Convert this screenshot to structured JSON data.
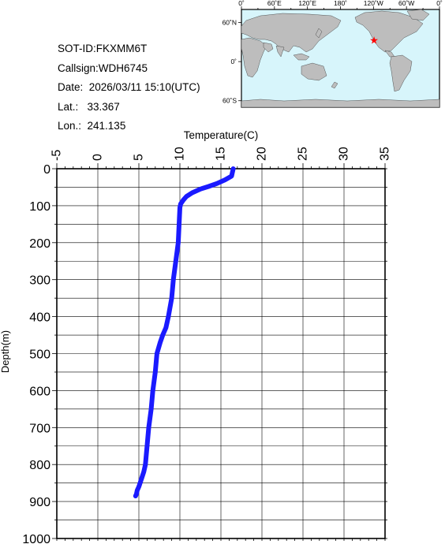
{
  "info": {
    "sot_id": "SOT-ID:FKXMM6T",
    "callsign": "Callsign:WDH6745",
    "date": "Date:  2026/03/11 15:10(UTC)",
    "lat": "Lat.:   33.367",
    "lon": "Lon.:  241.135"
  },
  "map": {
    "lon_labels": [
      "0˚",
      "60˚E",
      "120˚E",
      "180˚",
      "120˚W",
      "60˚W",
      "0˚"
    ],
    "lat_labels": [
      "60˚N",
      "0˚",
      "60˚S"
    ],
    "marker": {
      "lat": 33.367,
      "lon": 241.135
    },
    "colors": {
      "ocean": "#d7f5fb",
      "land": "#bdbdbd",
      "marker": "#ff0000"
    }
  },
  "chart_data": {
    "type": "line",
    "xlabel": "Temperature(C)",
    "ylabel": "Depth(m)",
    "xlim": [
      -5,
      35
    ],
    "ylim": [
      0,
      1000
    ],
    "y_inverted": true,
    "x_axis_position": "top",
    "x_ticks": [
      "-5",
      "0",
      "5",
      "10",
      "15",
      "20",
      "25",
      "30",
      "35"
    ],
    "y_ticks": [
      "0",
      "100",
      "200",
      "300",
      "400",
      "500",
      "600",
      "700",
      "800",
      "900",
      "1000"
    ],
    "grid": true,
    "line_color": "#1a1aff",
    "series": [
      {
        "x": [
          16.5,
          16.3,
          15.5,
          14.5,
          13.5,
          12.5,
          11.5,
          10.8,
          10.4,
          10.1,
          10.0,
          9.9,
          9.8,
          9.5,
          9.2,
          9.0,
          8.6,
          8.3,
          7.9,
          7.6,
          7.2,
          7.0,
          6.7,
          6.5,
          6.2,
          6.0,
          5.8,
          5.6,
          5.3,
          5.0,
          4.8,
          4.7,
          4.6
        ],
        "y": [
          0,
          20,
          30,
          40,
          48,
          55,
          65,
          75,
          85,
          95,
          105,
          150,
          200,
          250,
          300,
          350,
          400,
          430,
          450,
          470,
          500,
          550,
          600,
          650,
          700,
          750,
          800,
          820,
          840,
          860,
          870,
          880,
          885
        ]
      }
    ]
  }
}
